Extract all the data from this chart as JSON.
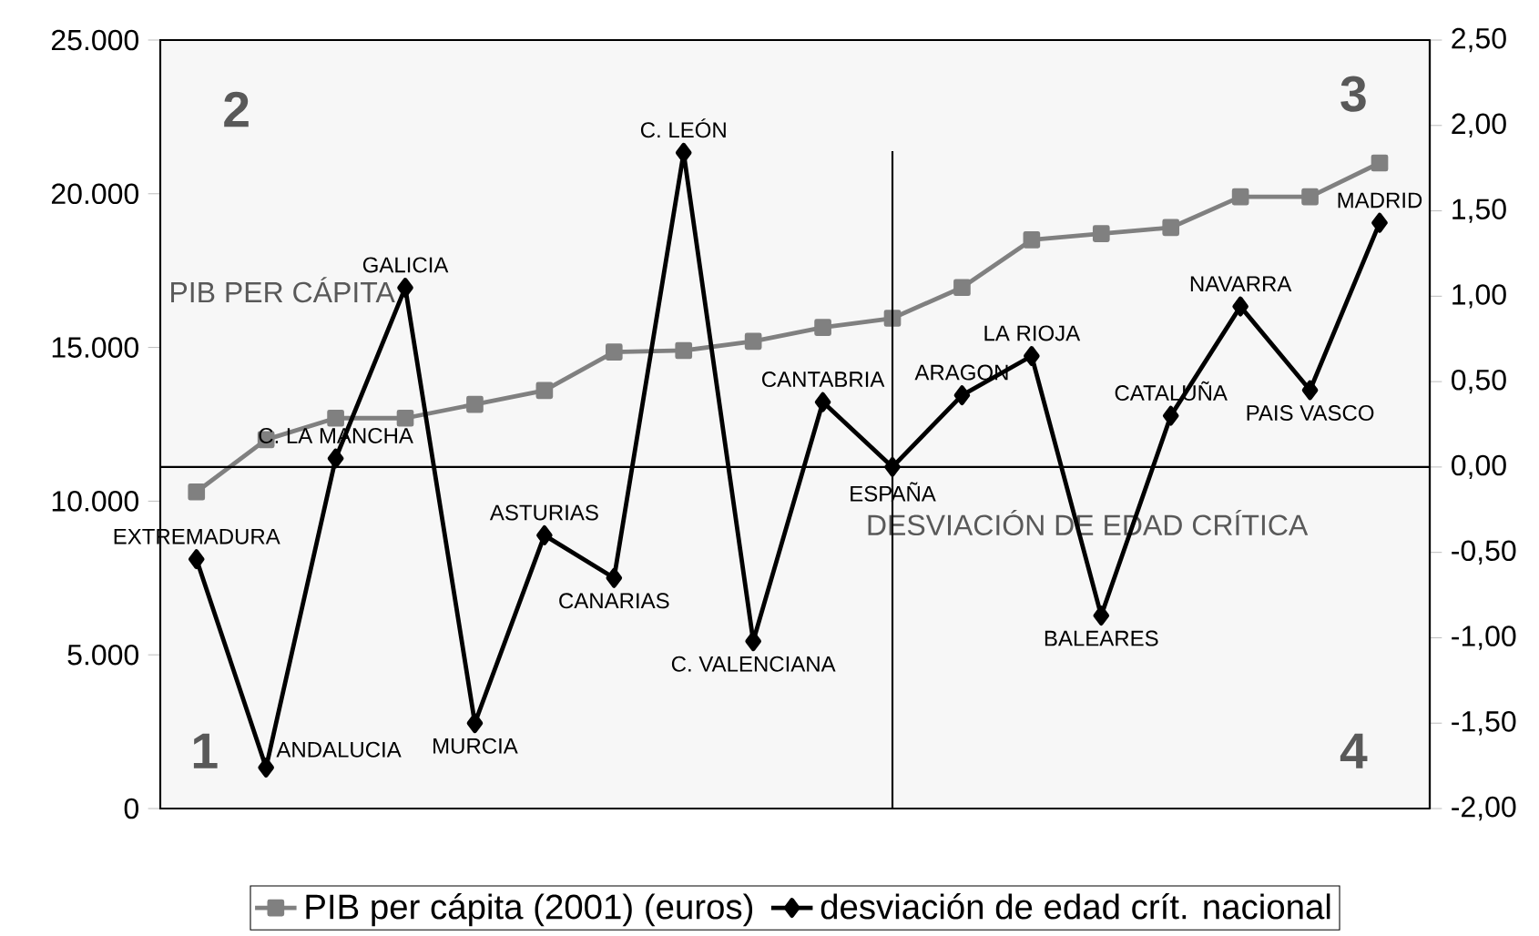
{
  "chart_data": {
    "type": "line",
    "categories": [
      null,
      null,
      null,
      null,
      null,
      null,
      null,
      null,
      null,
      null,
      null,
      null,
      null,
      null,
      null,
      null,
      null,
      null
    ],
    "series": [
      {
        "name": "PIB per cápita (2001) (euros)",
        "color": "#808080",
        "marker": "square",
        "values": [
          10300,
          12000,
          12700,
          12700,
          13150,
          13600,
          14850,
          14900,
          15200,
          15650,
          15950,
          16950,
          18500,
          18700,
          18900,
          19900,
          19900,
          21000
        ]
      },
      {
        "name": "desviación de edad crít. nacional",
        "color": "#000000",
        "marker": "diamond",
        "axis": "y2",
        "values": [
          -0.54,
          -1.76,
          0.05,
          1.05,
          -1.5,
          -0.4,
          -0.65,
          1.84,
          -1.02,
          0.38,
          0.0,
          0.42,
          0.65,
          -0.87,
          0.3,
          0.94,
          0.45,
          1.43
        ],
        "value_labels": [
          "EXTREMADURA",
          "ANDALUCIA",
          "C. LA MANCHA",
          "GALICIA",
          "MURCIA",
          "ASTURIAS",
          "CANARIAS",
          "C. LEÓN",
          "C. VALENCIANA",
          "CANTABRIA",
          "ESPAÑA",
          "ARAGON",
          "LA RIOJA",
          "BALEARES",
          "CATALUÑA",
          "NAVARRA",
          "PAIS VASCO",
          "MADRID"
        ]
      }
    ],
    "ylim": [
      0,
      25000
    ],
    "yticks": [
      0,
      {
        "value": 5000,
        "label": "5.000"
      },
      {
        "value": 10000,
        "label": "10.000"
      },
      {
        "value": 15000,
        "label": "15.000"
      },
      {
        "value": 20000,
        "label": "20.000"
      },
      {
        "value": 25000,
        "label": "25.000"
      }
    ],
    "y2lim": [
      -2,
      2.5
    ],
    "y2ticks": [
      {
        "value": -2,
        "label": "-2,00"
      },
      {
        "value": -1.5,
        "label": "-1,50"
      },
      {
        "value": -1,
        "label": "-1,00"
      },
      {
        "value": -0.5,
        "label": "-0,50"
      },
      {
        "value": 0,
        "label": "0,00"
      },
      {
        "value": 0.5,
        "label": "0,50"
      },
      {
        "value": 1,
        "label": "1,00"
      },
      {
        "value": 1.5,
        "label": "1,50"
      },
      {
        "value": 2,
        "label": "2,00"
      },
      {
        "value": 2.5,
        "label": "2,50"
      }
    ],
    "ref_lines": [
      {
        "axis": "y2",
        "value": 0,
        "color": "#000000"
      }
    ],
    "annotations": [
      "PIB PER CÁPITA",
      "DESVIACIÓN DE EDAD CRÍTICA",
      "1",
      "2",
      "3",
      "4"
    ],
    "legend": "bottom",
    "grid": false,
    "tick_labels": "y"
  }
}
